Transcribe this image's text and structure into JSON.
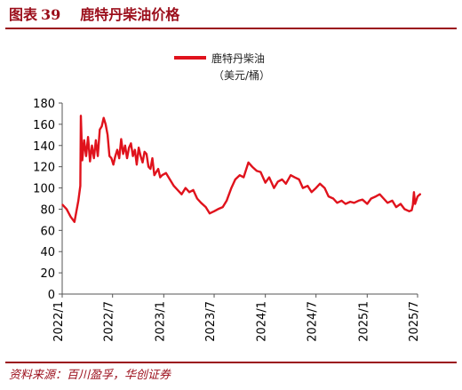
{
  "figure": {
    "label": "图表",
    "number": "39",
    "title": "鹿特丹柴油价格",
    "source": "资料来源：百川盈孚，华创证券"
  },
  "chart_data": {
    "type": "line",
    "legend": "鹿特丹柴油",
    "unit": "（美元/桶）",
    "legend_position": "top-center",
    "grid": false,
    "ylim": [
      0,
      180
    ],
    "yticks": [
      0,
      20,
      40,
      60,
      80,
      100,
      120,
      140,
      160,
      180
    ],
    "xlim": [
      "2022-01",
      "2025-07"
    ],
    "xticks": [
      "2022/1",
      "2022/7",
      "2023/1",
      "2023/7",
      "2024/1",
      "2024/7",
      "2025/1",
      "2025/7"
    ],
    "series": [
      {
        "name": "鹿特丹柴油",
        "color": "#e0121c",
        "x": [
          "2022-01-03",
          "2022-01-17",
          "2022-01-31",
          "2022-02-14",
          "2022-02-28",
          "2022-03-07",
          "2022-03-09",
          "2022-03-14",
          "2022-03-21",
          "2022-03-28",
          "2022-04-04",
          "2022-04-11",
          "2022-04-18",
          "2022-04-25",
          "2022-05-02",
          "2022-05-09",
          "2022-05-16",
          "2022-05-23",
          "2022-05-30",
          "2022-06-06",
          "2022-06-13",
          "2022-06-20",
          "2022-06-27",
          "2022-07-04",
          "2022-07-11",
          "2022-07-18",
          "2022-07-25",
          "2022-08-01",
          "2022-08-08",
          "2022-08-15",
          "2022-08-22",
          "2022-08-29",
          "2022-09-05",
          "2022-09-12",
          "2022-09-19",
          "2022-09-26",
          "2022-10-03",
          "2022-10-10",
          "2022-10-17",
          "2022-10-24",
          "2022-10-31",
          "2022-11-07",
          "2022-11-14",
          "2022-11-21",
          "2022-11-28",
          "2022-12-05",
          "2022-12-12",
          "2022-12-19",
          "2022-12-26",
          "2023-01-09",
          "2023-01-23",
          "2023-02-06",
          "2023-02-20",
          "2023-03-06",
          "2023-03-20",
          "2023-04-03",
          "2023-04-17",
          "2023-05-01",
          "2023-05-15",
          "2023-06-01",
          "2023-06-15",
          "2023-07-01",
          "2023-07-15",
          "2023-08-01",
          "2023-08-15",
          "2023-09-01",
          "2023-09-15",
          "2023-10-01",
          "2023-10-15",
          "2023-11-01",
          "2023-11-15",
          "2023-12-01",
          "2023-12-15",
          "2024-01-01",
          "2024-01-15",
          "2024-02-01",
          "2024-02-15",
          "2024-03-01",
          "2024-03-15",
          "2024-04-01",
          "2024-04-15",
          "2024-05-01",
          "2024-05-15",
          "2024-06-01",
          "2024-06-15",
          "2024-07-01",
          "2024-07-15",
          "2024-08-01",
          "2024-08-15",
          "2024-09-01",
          "2024-09-15",
          "2024-10-01",
          "2024-10-15",
          "2024-11-01",
          "2024-11-15",
          "2024-12-01",
          "2024-12-15",
          "2025-01-01",
          "2025-01-15",
          "2025-02-01",
          "2025-02-15",
          "2025-03-01",
          "2025-03-15",
          "2025-04-01",
          "2025-04-15",
          "2025-05-01",
          "2025-05-15",
          "2025-06-01",
          "2025-06-10",
          "2025-06-14",
          "2025-06-18",
          "2025-06-22",
          "2025-07-01",
          "2025-07-10"
        ],
        "values": [
          84,
          80,
          73,
          68,
          88,
          102,
          168,
          126,
          145,
          130,
          148,
          125,
          140,
          128,
          145,
          130,
          155,
          158,
          166,
          160,
          150,
          130,
          128,
          122,
          130,
          136,
          128,
          146,
          132,
          140,
          128,
          138,
          142,
          130,
          136,
          122,
          138,
          130,
          124,
          134,
          132,
          120,
          118,
          128,
          112,
          115,
          118,
          110,
          112,
          114,
          108,
          102,
          98,
          94,
          100,
          96,
          98,
          90,
          86,
          82,
          76,
          78,
          80,
          82,
          88,
          100,
          108,
          112,
          110,
          124,
          120,
          116,
          115,
          105,
          110,
          100,
          106,
          108,
          104,
          112,
          110,
          108,
          100,
          102,
          96,
          100,
          104,
          100,
          92,
          90,
          86,
          88,
          85,
          87,
          86,
          88,
          89,
          85,
          90,
          92,
          94,
          90,
          86,
          88,
          82,
          85,
          80,
          78,
          79,
          84,
          96,
          85,
          92,
          94
        ]
      }
    ]
  }
}
